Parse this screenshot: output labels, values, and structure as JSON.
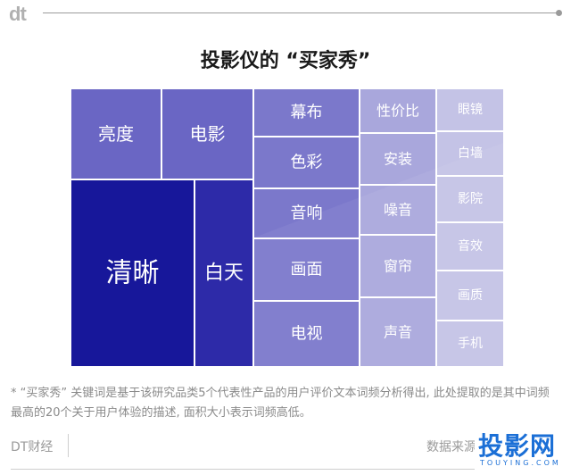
{
  "header": {
    "logo": "dt"
  },
  "chart_data": {
    "type": "treemap",
    "title": "投影仪的 “买家秀”",
    "items": [
      {
        "label": "清晰",
        "color": "#17179a"
      },
      {
        "label": "白天",
        "color": "#2d2aa8"
      },
      {
        "label": "亮度",
        "color": "#6a66c4"
      },
      {
        "label": "电影",
        "color": "#6a66c4"
      },
      {
        "label": "幕布",
        "color": "#7b78cb"
      },
      {
        "label": "色彩",
        "color": "#7b78cb"
      },
      {
        "label": "音响",
        "color": "#7b78cb"
      },
      {
        "label": "画面",
        "color": "#7b78cb"
      },
      {
        "label": "电视",
        "color": "#7b78cb"
      },
      {
        "label": "性价比",
        "color": "#a9a7dc"
      },
      {
        "label": "安装",
        "color": "#a9a7dc"
      },
      {
        "label": "噪音",
        "color": "#a9a7dc"
      },
      {
        "label": "窗帘",
        "color": "#a9a7dc"
      },
      {
        "label": "声音",
        "color": "#a9a7dc"
      },
      {
        "label": "眼镜",
        "color": "#c4c3e6"
      },
      {
        "label": "白墙",
        "color": "#c4c3e6"
      },
      {
        "label": "影院",
        "color": "#c4c3e6"
      },
      {
        "label": "音效",
        "color": "#c4c3e6"
      },
      {
        "label": "画质",
        "color": "#c4c3e6"
      },
      {
        "label": "手机",
        "color": "#c4c3e6"
      }
    ]
  },
  "note": "* “买家秀” 关键词是基于该研究品类5个代表性产品的用户评价文本词频分析得出, 此处提取的是其中词频最高的20个关于用户体验的描述, 面积大小表示词频高低。",
  "footer": {
    "brand": "DT财经",
    "source": "数据来源"
  },
  "watermark": {
    "text": "投影网",
    "sub": "TOUYING.COM"
  }
}
